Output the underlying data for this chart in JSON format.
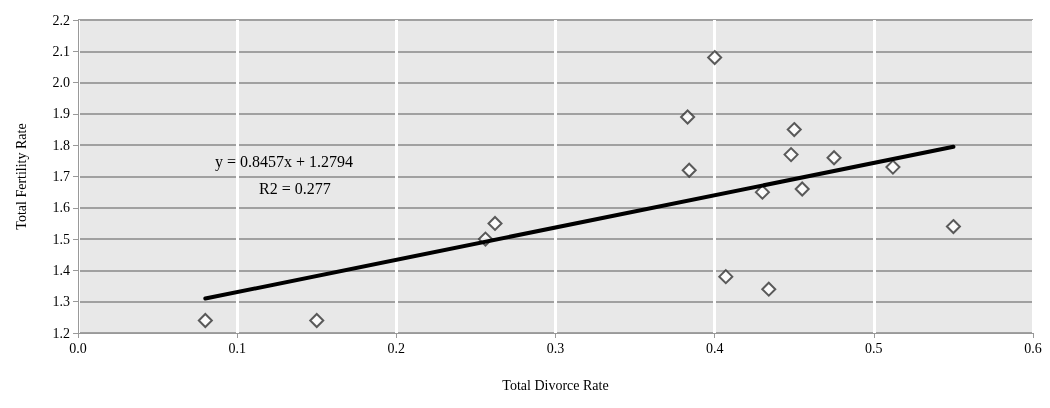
{
  "chart_data": {
    "type": "scatter",
    "xlabel": "Total Divorce Rate",
    "ylabel": "Total Fertility Rate",
    "annotations": [
      "y = 0.8457x + 1.2794",
      "R2 = 0.277"
    ],
    "x": [
      0.08,
      0.15,
      0.256,
      0.262,
      0.4,
      0.383,
      0.384,
      0.45,
      0.448,
      0.475,
      0.512,
      0.43,
      0.455,
      0.55,
      0.407,
      0.434
    ],
    "series": [
      {
        "color": "#333333",
        "values": [
          1.24,
          1.24,
          1.5,
          1.55,
          2.08,
          1.89,
          1.72,
          1.85,
          1.77,
          1.76,
          1.73,
          1.65,
          1.66,
          1.54,
          1.38,
          1.34
        ]
      },
      {
        "type": "line",
        "color": "#000000",
        "x": [
          0.08,
          0.55
        ],
        "values": [
          1.31,
          1.795
        ],
        "marker": "none"
      }
    ],
    "xlim": [
      0,
      0.6
    ],
    "xticks": [
      {
        "value": 0,
        "label": "0.0"
      },
      0.1,
      0.2,
      0.3,
      0.4,
      0.5,
      0.6
    ],
    "ylim": [
      1.2,
      2.2
    ],
    "yticks": [
      1.2,
      1.3,
      1.4,
      1.5,
      1.6,
      1.7,
      1.8,
      1.9,
      {
        "value": 2,
        "label": "2.0"
      },
      2.1,
      2.2
    ],
    "grid": true,
    "marker": "diamond"
  }
}
